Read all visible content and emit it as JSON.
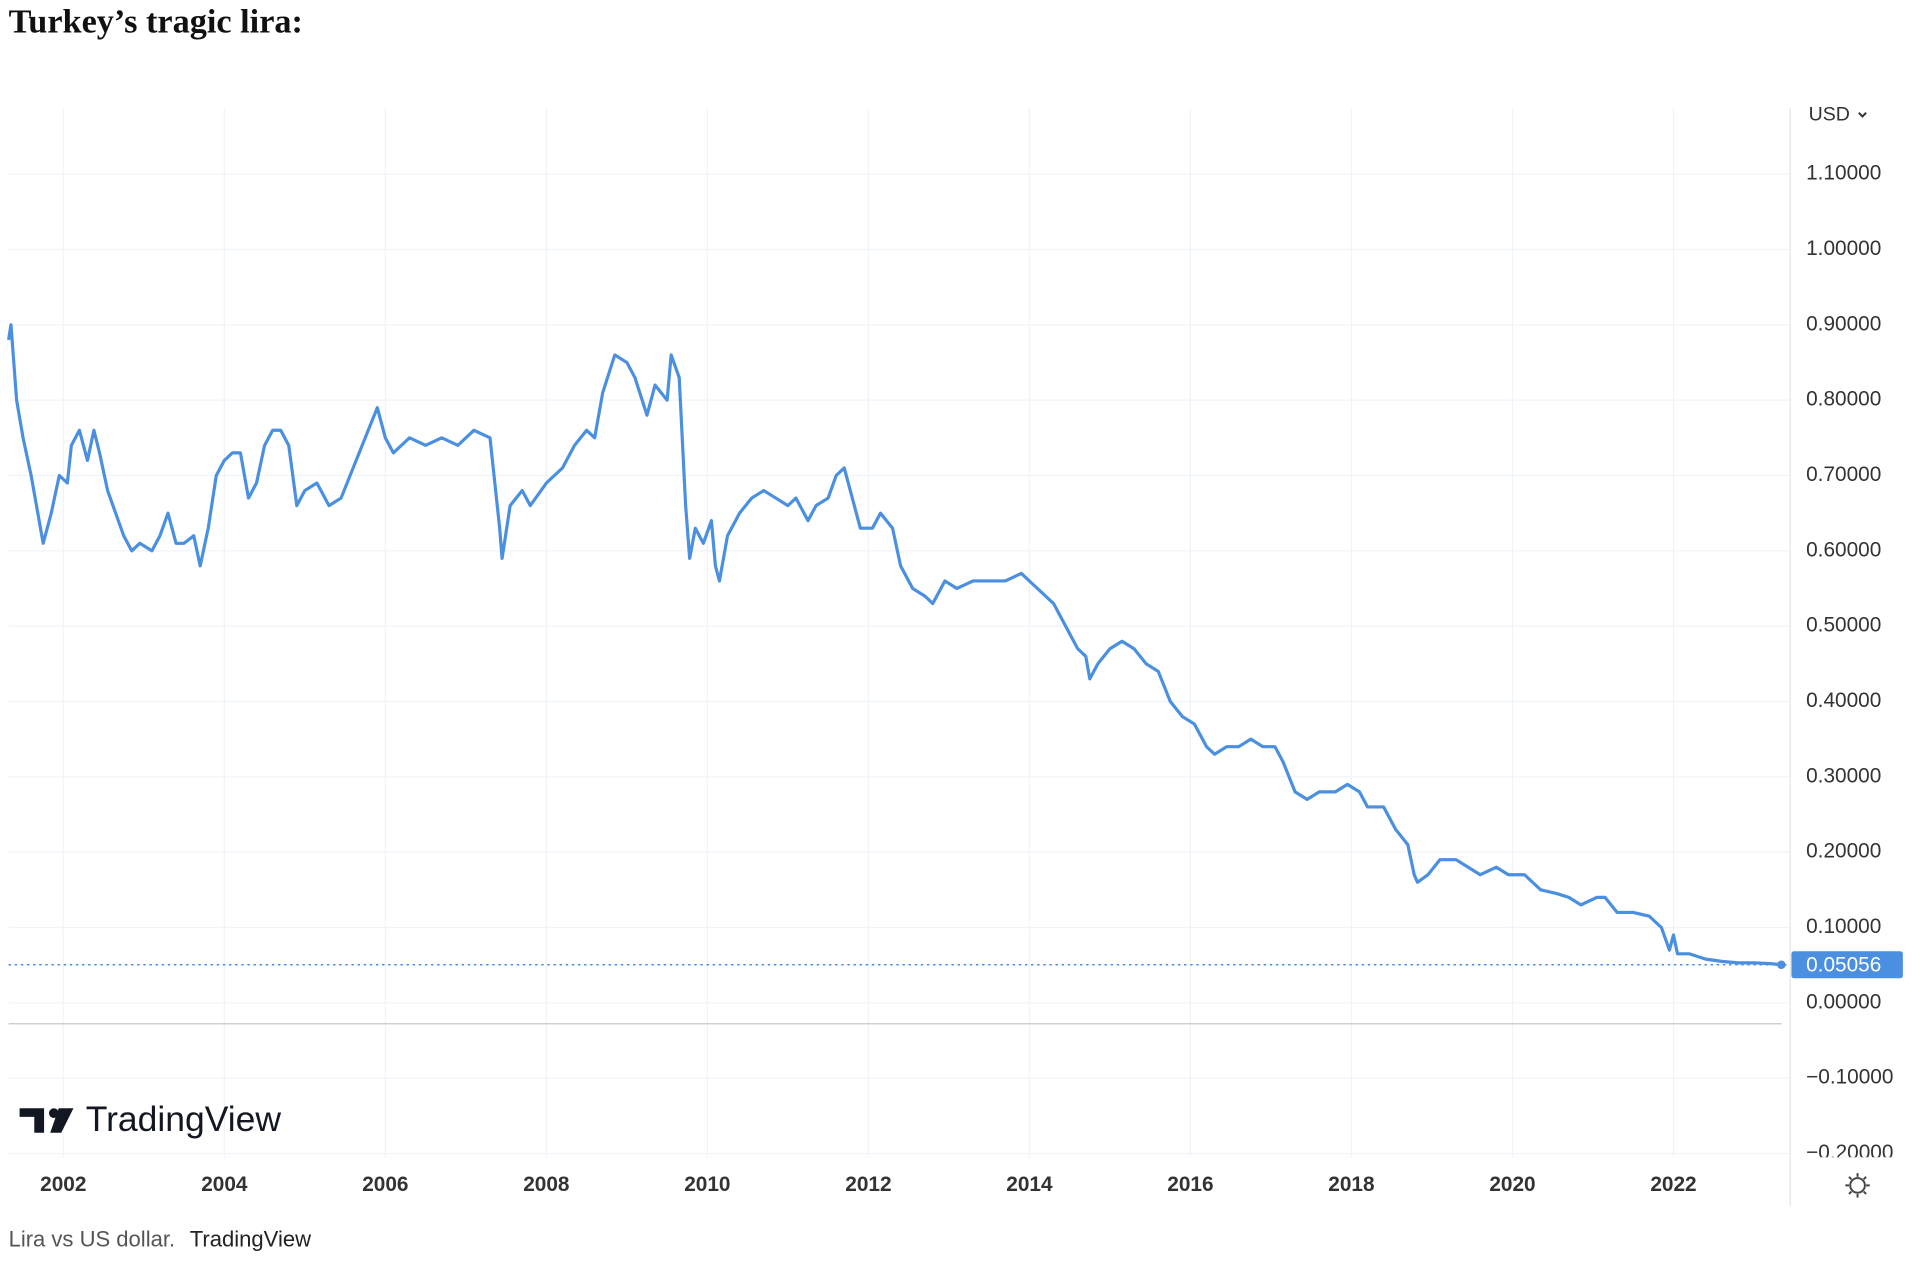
{
  "chart_data": {
    "type": "line",
    "title": "Turkey’s tragic lira:",
    "currency": "USD",
    "watermark": "TradingView",
    "xlim": [
      2001.32,
      2023.45
    ],
    "xticks": [
      2002,
      2004,
      2006,
      2008,
      2010,
      2012,
      2014,
      2016,
      2018,
      2020,
      2022
    ],
    "ylim": [
      -0.205,
      1.188
    ],
    "yticks": [
      {
        "value": -0.2,
        "label": "−0.20000"
      },
      {
        "value": -0.1,
        "label": "−0.10000"
      },
      {
        "value": 0,
        "label": "0.00000"
      },
      {
        "value": 0.1,
        "label": "0.10000"
      },
      {
        "value": 0.2,
        "label": "0.20000"
      },
      {
        "value": 0.3,
        "label": "0.30000"
      },
      {
        "value": 0.4,
        "label": "0.40000"
      },
      {
        "value": 0.5,
        "label": "0.50000"
      },
      {
        "value": 0.6,
        "label": "0.60000"
      },
      {
        "value": 0.7,
        "label": "0.70000"
      },
      {
        "value": 0.8,
        "label": "0.80000"
      },
      {
        "value": 0.9,
        "label": "0.90000"
      },
      {
        "value": 1.0,
        "label": "1.00000"
      },
      {
        "value": 1.1,
        "label": "1.10000"
      }
    ],
    "grid": true,
    "series": [
      {
        "color": "#4a8fe0",
        "x": [
          2001.32,
          2001.35,
          2001.42,
          2001.5,
          2001.6,
          2001.7,
          2001.75,
          2001.85,
          2001.95,
          2002.05,
          2002.1,
          2002.2,
          2002.3,
          2002.38,
          2002.45,
          2002.55,
          2002.65,
          2002.75,
          2002.85,
          2002.95,
          2003.1,
          2003.2,
          2003.3,
          2003.4,
          2003.5,
          2003.62,
          2003.7,
          2003.8,
          2003.9,
          2004.0,
          2004.1,
          2004.2,
          2004.3,
          2004.4,
          2004.5,
          2004.6,
          2004.7,
          2004.8,
          2004.9,
          2005.0,
          2005.15,
          2005.3,
          2005.45,
          2005.6,
          2005.75,
          2005.9,
          2006.0,
          2006.1,
          2006.3,
          2006.5,
          2006.7,
          2006.9,
          2007.1,
          2007.3,
          2007.35,
          2007.42,
          2007.45,
          2007.55,
          2007.7,
          2007.8,
          2008.0,
          2008.2,
          2008.35,
          2008.5,
          2008.6,
          2008.7,
          2008.85,
          2009.0,
          2009.1,
          2009.25,
          2009.35,
          2009.5,
          2009.55,
          2009.65,
          2009.73,
          2009.78,
          2009.85,
          2009.95,
          2010.05,
          2010.1,
          2010.15,
          2010.25,
          2010.4,
          2010.55,
          2010.7,
          2010.85,
          2011.0,
          2011.1,
          2011.25,
          2011.35,
          2011.5,
          2011.6,
          2011.7,
          2011.8,
          2011.9,
          2012.05,
          2012.15,
          2012.3,
          2012.4,
          2012.55,
          2012.7,
          2012.8,
          2012.95,
          2013.1,
          2013.3,
          2013.5,
          2013.7,
          2013.9,
          2014.1,
          2014.3,
          2014.45,
          2014.6,
          2014.7,
          2014.75,
          2014.85,
          2015.0,
          2015.15,
          2015.3,
          2015.45,
          2015.6,
          2015.75,
          2015.9,
          2016.05,
          2016.2,
          2016.3,
          2016.45,
          2016.6,
          2016.75,
          2016.9,
          2017.05,
          2017.15,
          2017.3,
          2017.45,
          2017.6,
          2017.8,
          2017.95,
          2018.1,
          2018.2,
          2018.4,
          2018.55,
          2018.7,
          2018.78,
          2018.82,
          2018.95,
          2019.1,
          2019.3,
          2019.45,
          2019.6,
          2019.8,
          2019.95,
          2020.15,
          2020.35,
          2020.55,
          2020.7,
          2020.85,
          2021.05,
          2021.15,
          2021.3,
          2021.5,
          2021.7,
          2021.85,
          2021.95,
          2022.0,
          2022.05,
          2022.2,
          2022.4,
          2022.6,
          2022.8,
          2023.0,
          2023.2,
          2023.34
        ],
        "values": [
          0.88,
          0.9,
          0.8,
          0.75,
          0.7,
          0.64,
          0.61,
          0.65,
          0.7,
          0.69,
          0.74,
          0.76,
          0.72,
          0.76,
          0.73,
          0.68,
          0.65,
          0.62,
          0.6,
          0.61,
          0.6,
          0.62,
          0.65,
          0.61,
          0.61,
          0.62,
          0.58,
          0.63,
          0.7,
          0.72,
          0.73,
          0.73,
          0.67,
          0.69,
          0.74,
          0.76,
          0.76,
          0.74,
          0.66,
          0.68,
          0.69,
          0.66,
          0.67,
          0.71,
          0.75,
          0.79,
          0.75,
          0.73,
          0.75,
          0.74,
          0.75,
          0.74,
          0.76,
          0.75,
          0.7,
          0.63,
          0.59,
          0.66,
          0.68,
          0.66,
          0.69,
          0.71,
          0.74,
          0.76,
          0.75,
          0.81,
          0.86,
          0.85,
          0.83,
          0.78,
          0.82,
          0.8,
          0.86,
          0.83,
          0.66,
          0.59,
          0.63,
          0.61,
          0.64,
          0.58,
          0.56,
          0.62,
          0.65,
          0.67,
          0.68,
          0.67,
          0.66,
          0.67,
          0.64,
          0.66,
          0.67,
          0.7,
          0.71,
          0.67,
          0.63,
          0.63,
          0.65,
          0.63,
          0.58,
          0.55,
          0.54,
          0.53,
          0.56,
          0.55,
          0.56,
          0.56,
          0.56,
          0.57,
          0.55,
          0.53,
          0.5,
          0.47,
          0.46,
          0.43,
          0.45,
          0.47,
          0.48,
          0.47,
          0.45,
          0.44,
          0.4,
          0.38,
          0.37,
          0.34,
          0.33,
          0.34,
          0.34,
          0.35,
          0.34,
          0.34,
          0.32,
          0.28,
          0.27,
          0.28,
          0.28,
          0.29,
          0.28,
          0.26,
          0.26,
          0.23,
          0.21,
          0.17,
          0.16,
          0.17,
          0.19,
          0.19,
          0.18,
          0.17,
          0.18,
          0.17,
          0.17,
          0.15,
          0.145,
          0.14,
          0.13,
          0.14,
          0.14,
          0.12,
          0.12,
          0.115,
          0.1,
          0.07,
          0.09,
          0.065,
          0.065,
          0.058,
          0.055,
          0.053,
          0.053,
          0.052,
          0.05056
        ]
      }
    ]
  },
  "caption": {
    "text": "Lira vs US dollar.",
    "source": "TradingView"
  }
}
